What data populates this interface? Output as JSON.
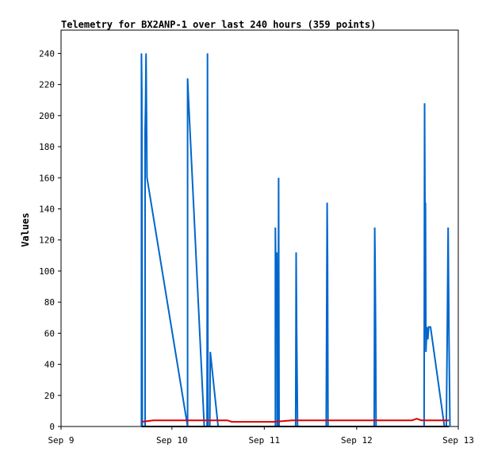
{
  "chart_data": {
    "type": "line",
    "title": "Telemetry for BX2ANP-1 over last 240 hours (359 points)",
    "xlabel": "",
    "ylabel": "Values",
    "x_ticks": [
      "Sep 9",
      "Sep 10",
      "Sep 11",
      "Sep 12",
      "Sep 13"
    ],
    "x_range_days": [
      0,
      4.3
    ],
    "x_tick_positions_days": [
      0,
      1.2,
      2.2,
      3.2,
      4.3
    ],
    "ylim": [
      0,
      255
    ],
    "y_ticks": [
      0,
      20,
      40,
      60,
      80,
      100,
      120,
      140,
      160,
      180,
      200,
      220,
      240
    ],
    "grid": false,
    "colors": {
      "blue_series": "#0066cc",
      "red_series": "#dd0000",
      "black_series": "#000000"
    },
    "series": [
      {
        "name": "",
        "color": "#0066cc",
        "points": [
          [
            0.87,
            0
          ],
          [
            0.87,
            240
          ],
          [
            0.875,
            215
          ],
          [
            0.88,
            0
          ],
          [
            0.91,
            0
          ],
          [
            0.91,
            190
          ],
          [
            0.915,
            207
          ],
          [
            0.92,
            240
          ],
          [
            0.93,
            160
          ],
          [
            1.37,
            0
          ],
          [
            1.37,
            224
          ],
          [
            1.38,
            210
          ],
          [
            1.55,
            0
          ],
          [
            1.58,
            0
          ],
          [
            1.585,
            240
          ],
          [
            1.59,
            0
          ],
          [
            1.61,
            0
          ],
          [
            1.615,
            48
          ],
          [
            1.7,
            0
          ],
          [
            2.32,
            0
          ],
          [
            2.32,
            128
          ],
          [
            2.33,
            70
          ],
          [
            2.335,
            112
          ],
          [
            2.34,
            0
          ],
          [
            2.35,
            0
          ],
          [
            2.355,
            160
          ],
          [
            2.36,
            0
          ],
          [
            2.54,
            0
          ],
          [
            2.545,
            112
          ],
          [
            2.55,
            64
          ],
          [
            2.555,
            32
          ],
          [
            2.56,
            0
          ],
          [
            2.87,
            0
          ],
          [
            2.875,
            72
          ],
          [
            2.88,
            144
          ],
          [
            2.885,
            108
          ],
          [
            2.89,
            0
          ],
          [
            3.39,
            0
          ],
          [
            3.395,
            128
          ],
          [
            3.4,
            106
          ],
          [
            3.405,
            64
          ],
          [
            3.41,
            0
          ],
          [
            3.93,
            0
          ],
          [
            3.935,
            208
          ],
          [
            3.94,
            128
          ],
          [
            3.945,
            144
          ],
          [
            3.95,
            48
          ],
          [
            3.96,
            64
          ],
          [
            3.97,
            56
          ],
          [
            3.98,
            64
          ],
          [
            4.0,
            64
          ],
          [
            4.15,
            0
          ],
          [
            4.17,
            0
          ],
          [
            4.18,
            56
          ],
          [
            4.19,
            128
          ],
          [
            4.2,
            56
          ],
          [
            4.21,
            0
          ]
        ]
      },
      {
        "name": "",
        "color": "#dd0000",
        "points": [
          [
            0.87,
            3
          ],
          [
            1.0,
            4
          ],
          [
            1.8,
            4
          ],
          [
            1.85,
            3
          ],
          [
            2.3,
            3
          ],
          [
            2.5,
            4
          ],
          [
            3.8,
            4
          ],
          [
            3.85,
            5
          ],
          [
            3.9,
            4
          ],
          [
            4.2,
            4
          ]
        ]
      },
      {
        "name": "",
        "color": "#000000",
        "points": [
          [
            0.87,
            0
          ],
          [
            4.2,
            0
          ]
        ]
      }
    ]
  }
}
